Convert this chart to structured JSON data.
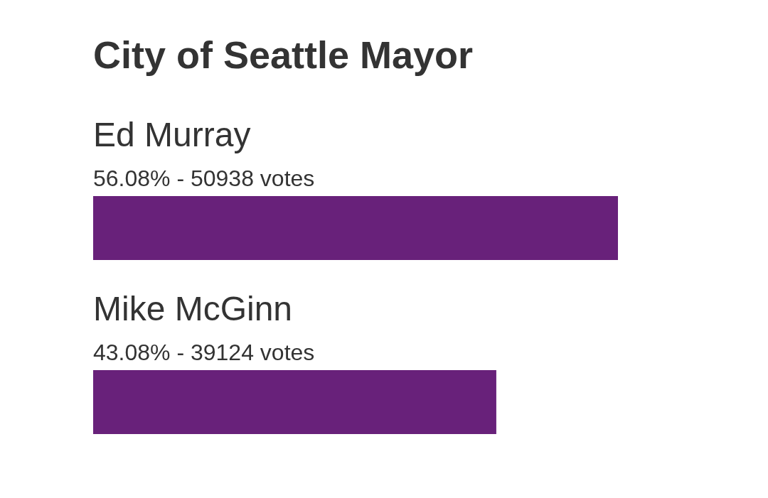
{
  "chart_data": {
    "type": "bar",
    "orientation": "horizontal",
    "title": "City of Seattle Mayor",
    "categories": [
      "Ed Murray",
      "Mike McGinn"
    ],
    "values": [
      56.08,
      43.08
    ],
    "value_labels": [
      "56.08% - 50938 votes",
      "43.08% - 39124 votes"
    ],
    "color": "#68217a"
  }
}
